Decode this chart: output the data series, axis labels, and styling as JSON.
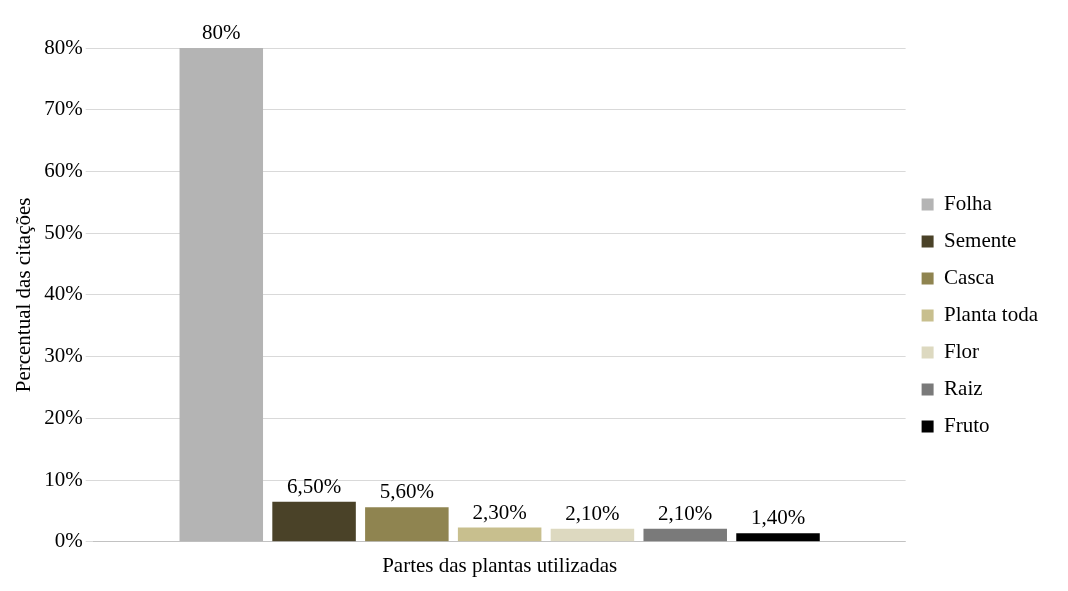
{
  "chart_data": {
    "type": "bar",
    "xlabel": "Partes das plantas utilizadas",
    "ylabel": "Percentual das citações",
    "categories": [
      null
    ],
    "series": [
      {
        "name": "Folha",
        "color": "#b4b4b4",
        "values": [
          80
        ],
        "value_labels": [
          "80%"
        ]
      },
      {
        "name": "Semente",
        "color": "#4a4228",
        "values": [
          6.5
        ],
        "value_labels": [
          "6,50%"
        ]
      },
      {
        "name": "Casca",
        "color": "#8f8450",
        "values": [
          5.6
        ],
        "value_labels": [
          "5,60%"
        ]
      },
      {
        "name": "Planta toda",
        "color": "#c8bf8e",
        "values": [
          2.3
        ],
        "value_labels": [
          "2,30%"
        ]
      },
      {
        "name": "Flor",
        "color": "#ddd9c0",
        "values": [
          2.1
        ],
        "value_labels": [
          "2,10%"
        ]
      },
      {
        "name": "Raiz",
        "color": "#7a7a7a",
        "values": [
          2.1
        ],
        "value_labels": [
          "2,10%"
        ]
      },
      {
        "name": "Fruto",
        "color": "#000000",
        "values": [
          1.4
        ],
        "value_labels": [
          "1,40%"
        ]
      }
    ],
    "ylim": [
      0,
      80
    ],
    "yticks": [
      {
        "value": 0,
        "label": "0%"
      },
      {
        "value": 10,
        "label": "10%"
      },
      {
        "value": 20,
        "label": "20%"
      },
      {
        "value": 30,
        "label": "30%"
      },
      {
        "value": 40,
        "label": "40%"
      },
      {
        "value": 50,
        "label": "50%"
      },
      {
        "value": 60,
        "label": "60%"
      },
      {
        "value": 70,
        "label": "70%"
      },
      {
        "value": 80,
        "label": "80%"
      }
    ],
    "grid": "y",
    "legend": "right"
  }
}
